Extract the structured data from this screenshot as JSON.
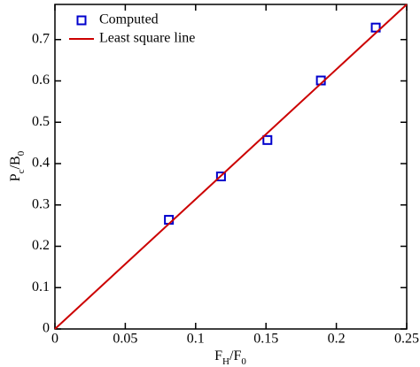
{
  "chart_data": {
    "type": "scatter",
    "xlabel": [
      "F",
      "H",
      "/F",
      "0"
    ],
    "ylabel": [
      "P",
      "c",
      "/B",
      "0"
    ],
    "xlim": [
      0,
      0.25
    ],
    "xticks": [
      0,
      0.05,
      0.1,
      0.15,
      0.2,
      0.25
    ],
    "ylim": [
      0,
      0.785
    ],
    "yticks": [
      0,
      0.1,
      0.2,
      0.3,
      0.4,
      0.5,
      0.6,
      0.7
    ],
    "series": [
      {
        "name": "Computed",
        "color": "#0000cc",
        "marker": "square",
        "x": [
          0.081,
          0.118,
          0.151,
          0.189,
          0.228
        ],
        "values": [
          0.264,
          0.369,
          0.457,
          0.601,
          0.729
        ]
      },
      {
        "name": "Least square line",
        "color": "#cc0000",
        "marker": "line",
        "x": [
          0,
          0.25
        ],
        "values": [
          0,
          0.785
        ]
      }
    ],
    "legend": "top-left"
  }
}
